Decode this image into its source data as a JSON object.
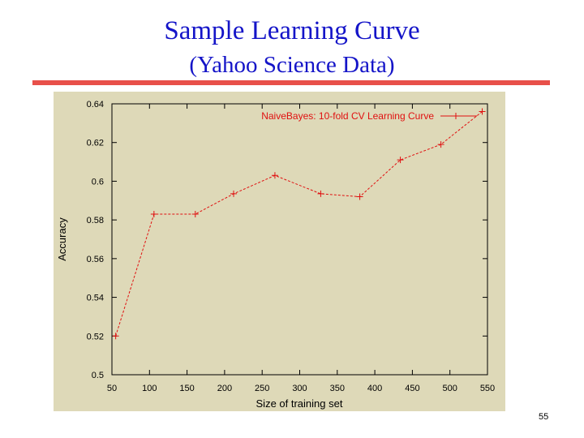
{
  "slide": {
    "title_line1": "Sample Learning Curve",
    "title_line2": "(Yahoo Science Data)",
    "page_number": "55",
    "title_color": "#1414c8",
    "rule_color": "#e8504a",
    "chart_background": "#ded9b8",
    "series_color": "#e01010"
  },
  "chart_data": {
    "type": "line",
    "title": "",
    "xlabel": "Size of training set",
    "ylabel": "Accuracy",
    "xlim": [
      50,
      550
    ],
    "ylim": [
      0.5,
      0.64
    ],
    "xticks": [
      50,
      100,
      150,
      200,
      250,
      300,
      350,
      400,
      450,
      500,
      550
    ],
    "yticks": [
      0.5,
      0.52,
      0.54,
      0.56,
      0.58,
      0.6,
      0.62,
      0.64
    ],
    "xtick_labels": [
      "50",
      "100",
      "150",
      "200",
      "250",
      "300",
      "350",
      "400",
      "450",
      "500",
      "550"
    ],
    "ytick_labels": [
      "0.5",
      "0.52",
      "0.54",
      "0.56",
      "0.58",
      "0.6",
      "0.62",
      "0.64"
    ],
    "grid": false,
    "legend_position": "top-right",
    "series": [
      {
        "name": "NaiveBayes: 10-fold CV Learning Curve",
        "x": [
          55,
          106,
          161,
          212,
          267,
          328,
          380,
          434,
          488,
          543
        ],
        "y": [
          0.52,
          0.583,
          0.583,
          0.5935,
          0.603,
          0.5935,
          0.592,
          0.611,
          0.619,
          0.636
        ]
      }
    ]
  }
}
